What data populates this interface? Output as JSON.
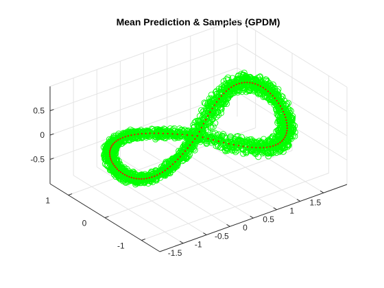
{
  "chart_data": {
    "type": "scatter",
    "title": "Mean Prediction & Samples (GPDM)",
    "xlabel": "",
    "ylabel": "",
    "zlabel": "",
    "xlim": [
      -2,
      2
    ],
    "ylim": [
      -1.5,
      1.5
    ],
    "zlim": [
      -1,
      1
    ],
    "x_ticks": [
      "-1.5",
      "-1",
      "-0.5",
      "0",
      "0.5",
      "1",
      "1.5"
    ],
    "y_ticks": [
      "-1",
      "0",
      "1"
    ],
    "z_ticks": [
      "-0.5",
      "0",
      "0.5"
    ],
    "grid": true,
    "legend": "none",
    "series": [
      {
        "role": "samples",
        "marker": "circle",
        "color": "#00ff00",
        "shape": "figure-eight trajectory",
        "x_range": [
          -1.8,
          1.75
        ],
        "y_range": [
          -1.0,
          1.0
        ],
        "z_range": [
          -0.8,
          0.8
        ]
      },
      {
        "role": "mean",
        "marker": "dot",
        "color": "#ff0000"
      }
    ]
  }
}
